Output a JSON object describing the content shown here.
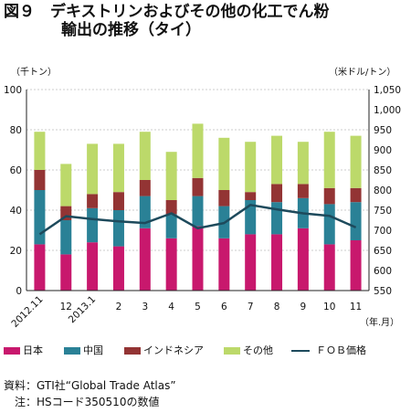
{
  "title_line1": "図９　デキストリンおよびその他の化工でん粉",
  "title_line2": "輸出の推移（タイ）",
  "chart_data": {
    "type": "bar",
    "stacked": true,
    "left_unit": "（千トン）",
    "right_unit": "（米ドル/トン）",
    "x_unit": "（年.月）",
    "categories": [
      "2012.11",
      "12",
      "2013.1",
      "2",
      "3",
      "4",
      "5",
      "6",
      "7",
      "8",
      "9",
      "10",
      "11"
    ],
    "ylim": [
      0,
      100
    ],
    "y_ticks": [
      0,
      20,
      40,
      60,
      80,
      100
    ],
    "y2lim": [
      550,
      1050
    ],
    "y2_ticks": [
      "550",
      "600",
      "650",
      "700",
      "750",
      "800",
      "850",
      "900",
      "950",
      "1,000",
      "1,050"
    ],
    "series": [
      {
        "name": "日本",
        "color": "#c8186d",
        "values": [
          23,
          18,
          24,
          22,
          31,
          26,
          32,
          26,
          28,
          28,
          31,
          23,
          25
        ]
      },
      {
        "name": "中国",
        "color": "#2a8196",
        "values": [
          27,
          17,
          17,
          18,
          16,
          12,
          15,
          16,
          17,
          16,
          15,
          20,
          19
        ]
      },
      {
        "name": "インドネシア",
        "color": "#933434",
        "values": [
          10,
          7,
          7,
          9,
          8,
          7,
          9,
          8,
          4,
          9,
          7,
          8,
          7
        ]
      },
      {
        "name": "その他",
        "color": "#bcd96a",
        "values": [
          19,
          21,
          25,
          24,
          24,
          24,
          27,
          26,
          25,
          24,
          21,
          28,
          26
        ]
      }
    ],
    "line_series": {
      "name": "ＦＯＢ価格",
      "color": "#1d4a5c",
      "axis": "right",
      "values": [
        690,
        735,
        728,
        722,
        718,
        742,
        705,
        718,
        763,
        752,
        742,
        736,
        707
      ]
    },
    "grid": true
  },
  "notes": {
    "source": "資料：GTI社“Global Trade Atlas”",
    "note": "注：HSコード350510の数値"
  }
}
